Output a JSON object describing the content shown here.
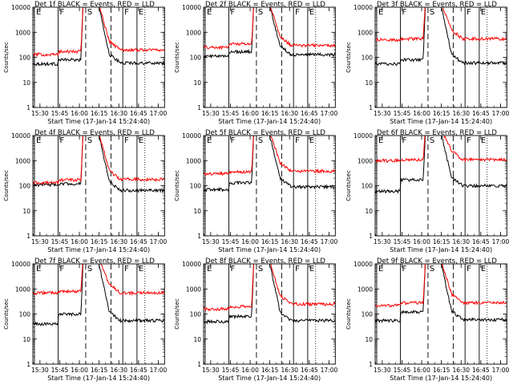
{
  "chart_data": [
    {
      "type": "line",
      "title": "Det 1f BLACK = Events, RED = LLD",
      "xlabel": "Start Time (17-Jan-14 15:24:40)",
      "ylabel": "Counts/sec",
      "ylim": [
        1,
        10000
      ],
      "yscale": "log",
      "yticks": [
        "1",
        "10",
        "100",
        "1000",
        "10000"
      ],
      "xticks": [
        "15:30",
        "15:45",
        "16:00",
        "16:15",
        "16:30",
        "16:45",
        "17:00"
      ],
      "xlim_hours": [
        15.41,
        17.08
      ],
      "markers": [
        {
          "label": "E",
          "t": 15.43,
          "style": "solid"
        },
        {
          "label": "F",
          "t": 15.73,
          "style": "solid"
        },
        {
          "label": "S",
          "t": 16.08,
          "style": "dashed"
        },
        {
          "label": "",
          "t": 16.4,
          "style": "dashed"
        },
        {
          "label": "F",
          "t": 16.55,
          "style": "solid"
        },
        {
          "label": "E",
          "t": 16.73,
          "style": "solid"
        },
        {
          "label": "",
          "t": 16.83,
          "style": "dotted"
        }
      ],
      "series": [
        {
          "name": "Events",
          "color": "#000000",
          "pre": 55,
          "mid": 80,
          "post": 60
        },
        {
          "name": "LLD",
          "color": "#ff0000",
          "pre": 130,
          "mid": 170,
          "post": 200
        }
      ]
    },
    {
      "type": "line",
      "title": "Det 2f BLACK = Events, RED = LLD",
      "xlabel": "Start Time (17-Jan-14 15:24:40)",
      "ylabel": "Counts/sec",
      "ylim": [
        1,
        10000
      ],
      "yscale": "log",
      "yticks": [
        "1",
        "10",
        "100",
        "1000",
        "10000"
      ],
      "xticks": [
        "15:30",
        "15:45",
        "16:00",
        "16:15",
        "16:30",
        "16:45",
        "17:00"
      ],
      "xlim_hours": [
        15.41,
        17.08
      ],
      "markers": [
        {
          "label": "E",
          "t": 15.43,
          "style": "solid"
        },
        {
          "label": "F",
          "t": 15.73,
          "style": "solid"
        },
        {
          "label": "S",
          "t": 16.08,
          "style": "dashed"
        },
        {
          "label": "",
          "t": 16.4,
          "style": "dashed"
        },
        {
          "label": "F",
          "t": 16.55,
          "style": "solid"
        },
        {
          "label": "E",
          "t": 16.73,
          "style": "solid"
        },
        {
          "label": "",
          "t": 16.83,
          "style": "dotted"
        }
      ],
      "series": [
        {
          "name": "Events",
          "color": "#000000",
          "pre": 110,
          "mid": 170,
          "post": 130
        },
        {
          "name": "LLD",
          "color": "#ff0000",
          "pre": 250,
          "mid": 350,
          "post": 300
        }
      ]
    },
    {
      "type": "line",
      "title": "Det 3f BLACK = Events, RED = LLD",
      "xlabel": "Start Time (17-Jan-14 15:24:40)",
      "ylabel": "Counts/sec",
      "ylim": [
        1,
        10000
      ],
      "yscale": "log",
      "yticks": [
        "1",
        "10",
        "100",
        "1000",
        "10000"
      ],
      "xticks": [
        "15:30",
        "15:45",
        "16:00",
        "16:15",
        "16:30",
        "16:45",
        "17:00"
      ],
      "xlim_hours": [
        15.41,
        17.08
      ],
      "markers": [
        {
          "label": "E",
          "t": 15.43,
          "style": "solid"
        },
        {
          "label": "F",
          "t": 15.73,
          "style": "solid"
        },
        {
          "label": "S",
          "t": 16.08,
          "style": "dashed"
        },
        {
          "label": "",
          "t": 16.4,
          "style": "dashed"
        },
        {
          "label": "F",
          "t": 16.55,
          "style": "solid"
        },
        {
          "label": "E",
          "t": 16.73,
          "style": "solid"
        },
        {
          "label": "",
          "t": 16.83,
          "style": "dotted"
        }
      ],
      "series": [
        {
          "name": "Events",
          "color": "#000000",
          "pre": 55,
          "mid": 80,
          "post": 60
        },
        {
          "name": "LLD",
          "color": "#ff0000",
          "pre": 500,
          "mid": 550,
          "post": 550
        }
      ]
    },
    {
      "type": "line",
      "title": "Det 4f BLACK = Events, RED = LLD",
      "xlabel": "Start Time (17-Jan-14 15:24:40)",
      "ylabel": "Counts/sec",
      "ylim": [
        1,
        10000
      ],
      "yscale": "log",
      "yticks": [
        "1",
        "10",
        "100",
        "1000",
        "10000"
      ],
      "xticks": [
        "15:30",
        "15:45",
        "16:00",
        "16:15",
        "16:30",
        "16:45",
        "17:00"
      ],
      "xlim_hours": [
        15.41,
        17.08
      ],
      "markers": [
        {
          "label": "E",
          "t": 15.43,
          "style": "solid"
        },
        {
          "label": "F",
          "t": 15.73,
          "style": "solid"
        },
        {
          "label": "S",
          "t": 16.08,
          "style": "dashed"
        },
        {
          "label": "",
          "t": 16.4,
          "style": "dashed"
        },
        {
          "label": "F",
          "t": 16.55,
          "style": "solid"
        },
        {
          "label": "E",
          "t": 16.73,
          "style": "solid"
        },
        {
          "label": "",
          "t": 16.83,
          "style": "dotted"
        }
      ],
      "series": [
        {
          "name": "Events",
          "color": "#000000",
          "pre": 110,
          "mid": 120,
          "post": 65
        },
        {
          "name": "LLD",
          "color": "#ff0000",
          "pre": 130,
          "mid": 170,
          "post": 180
        }
      ]
    },
    {
      "type": "line",
      "title": "Det 5f BLACK = Events, RED = LLD",
      "xlabel": "Start Time (17-Jan-14 15:24:40)",
      "ylabel": "Counts/sec",
      "ylim": [
        1,
        10000
      ],
      "yscale": "log",
      "yticks": [
        "1",
        "10",
        "100",
        "1000",
        "10000"
      ],
      "xticks": [
        "15:30",
        "15:45",
        "16:00",
        "16:15",
        "16:30",
        "16:45",
        "17:00"
      ],
      "xlim_hours": [
        15.41,
        17.08
      ],
      "markers": [
        {
          "label": "E",
          "t": 15.43,
          "style": "solid"
        },
        {
          "label": "F",
          "t": 15.73,
          "style": "solid"
        },
        {
          "label": "S",
          "t": 16.08,
          "style": "dashed"
        },
        {
          "label": "",
          "t": 16.4,
          "style": "dashed"
        },
        {
          "label": "F",
          "t": 16.55,
          "style": "solid"
        },
        {
          "label": "E",
          "t": 16.73,
          "style": "solid"
        },
        {
          "label": "",
          "t": 16.83,
          "style": "dotted"
        }
      ],
      "series": [
        {
          "name": "Events",
          "color": "#000000",
          "pre": 70,
          "mid": 130,
          "post": 90
        },
        {
          "name": "LLD",
          "color": "#ff0000",
          "pre": 300,
          "mid": 350,
          "post": 380
        }
      ]
    },
    {
      "type": "line",
      "title": "Det 6f BLACK = Events, RED = LLD",
      "xlabel": "Start Time (17-Jan-14 15:24:40)",
      "ylabel": "Counts/sec",
      "ylim": [
        1,
        10000
      ],
      "yscale": "log",
      "yticks": [
        "1",
        "10",
        "100",
        "1000",
        "10000"
      ],
      "xticks": [
        "15:30",
        "15:45",
        "16:00",
        "16:15",
        "16:30",
        "16:45",
        "17:00"
      ],
      "xlim_hours": [
        15.41,
        17.08
      ],
      "markers": [
        {
          "label": "E",
          "t": 15.43,
          "style": "solid"
        },
        {
          "label": "F",
          "t": 15.73,
          "style": "solid"
        },
        {
          "label": "S",
          "t": 16.08,
          "style": "dashed"
        },
        {
          "label": "",
          "t": 16.4,
          "style": "dashed"
        },
        {
          "label": "F",
          "t": 16.55,
          "style": "solid"
        },
        {
          "label": "E",
          "t": 16.73,
          "style": "solid"
        },
        {
          "label": "",
          "t": 16.83,
          "style": "dotted"
        }
      ],
      "series": [
        {
          "name": "Events",
          "color": "#000000",
          "pre": 60,
          "mid": 170,
          "post": 100
        },
        {
          "name": "LLD",
          "color": "#ff0000",
          "pre": 1000,
          "mid": 1100,
          "post": 1100
        }
      ]
    },
    {
      "type": "line",
      "title": "Det 7f BLACK = Events, RED = LLD",
      "xlabel": "Start Time (17-Jan-14 15:24:40)",
      "ylabel": "Counts/sec",
      "ylim": [
        1,
        10000
      ],
      "yscale": "log",
      "yticks": [
        "1",
        "10",
        "100",
        "1000",
        "10000"
      ],
      "xticks": [
        "15:30",
        "15:45",
        "16:00",
        "16:15",
        "16:30",
        "16:45",
        "17:00"
      ],
      "xlim_hours": [
        15.41,
        17.08
      ],
      "markers": [
        {
          "label": "E",
          "t": 15.43,
          "style": "solid"
        },
        {
          "label": "F",
          "t": 15.73,
          "style": "solid"
        },
        {
          "label": "S",
          "t": 16.08,
          "style": "dashed"
        },
        {
          "label": "",
          "t": 16.4,
          "style": "dashed"
        },
        {
          "label": "F",
          "t": 16.55,
          "style": "solid"
        },
        {
          "label": "E",
          "t": 16.73,
          "style": "solid"
        },
        {
          "label": "",
          "t": 16.83,
          "style": "dotted"
        }
      ],
      "series": [
        {
          "name": "Events",
          "color": "#000000",
          "pre": 40,
          "mid": 100,
          "post": 55
        },
        {
          "name": "LLD",
          "color": "#ff0000",
          "pre": 700,
          "mid": 800,
          "post": 700
        }
      ]
    },
    {
      "type": "line",
      "title": "Det 8f BLACK = Events, RED = LLD",
      "xlabel": "Start Time (17-Jan-14 15:24:40)",
      "ylabel": "Counts/sec",
      "ylim": [
        1,
        10000
      ],
      "yscale": "log",
      "yticks": [
        "1",
        "10",
        "100",
        "1000",
        "10000"
      ],
      "xticks": [
        "15:30",
        "15:45",
        "16:00",
        "16:15",
        "16:30",
        "16:45",
        "17:00"
      ],
      "xlim_hours": [
        15.41,
        17.08
      ],
      "markers": [
        {
          "label": "E",
          "t": 15.43,
          "style": "solid"
        },
        {
          "label": "F",
          "t": 15.73,
          "style": "solid"
        },
        {
          "label": "S",
          "t": 16.08,
          "style": "dashed"
        },
        {
          "label": "",
          "t": 16.4,
          "style": "dashed"
        },
        {
          "label": "F",
          "t": 16.55,
          "style": "solid"
        },
        {
          "label": "E",
          "t": 16.73,
          "style": "solid"
        },
        {
          "label": "",
          "t": 16.83,
          "style": "dotted"
        }
      ],
      "series": [
        {
          "name": "Events",
          "color": "#000000",
          "pre": 50,
          "mid": 80,
          "post": 55
        },
        {
          "name": "LLD",
          "color": "#ff0000",
          "pre": 160,
          "mid": 200,
          "post": 250
        }
      ]
    },
    {
      "type": "line",
      "title": "Det 9f BLACK = Events, RED = LLD",
      "xlabel": "Start Time (17-Jan-14 15:24:40)",
      "ylabel": "Counts/sec",
      "ylim": [
        1,
        10000
      ],
      "yscale": "log",
      "yticks": [
        "1",
        "10",
        "100",
        "1000",
        "10000"
      ],
      "xticks": [
        "15:30",
        "15:45",
        "16:00",
        "16:15",
        "16:30",
        "16:45",
        "17:00"
      ],
      "xlim_hours": [
        15.41,
        17.08
      ],
      "markers": [
        {
          "label": "E",
          "t": 15.43,
          "style": "solid"
        },
        {
          "label": "F",
          "t": 15.73,
          "style": "solid"
        },
        {
          "label": "S",
          "t": 16.08,
          "style": "dashed"
        },
        {
          "label": "",
          "t": 16.4,
          "style": "dashed"
        },
        {
          "label": "F",
          "t": 16.55,
          "style": "solid"
        },
        {
          "label": "E",
          "t": 16.73,
          "style": "solid"
        },
        {
          "label": "",
          "t": 16.83,
          "style": "dotted"
        }
      ],
      "series": [
        {
          "name": "Events",
          "color": "#000000",
          "pre": 55,
          "mid": 120,
          "post": 60
        },
        {
          "name": "LLD",
          "color": "#ff0000",
          "pre": 220,
          "mid": 280,
          "post": 280
        }
      ]
    }
  ]
}
